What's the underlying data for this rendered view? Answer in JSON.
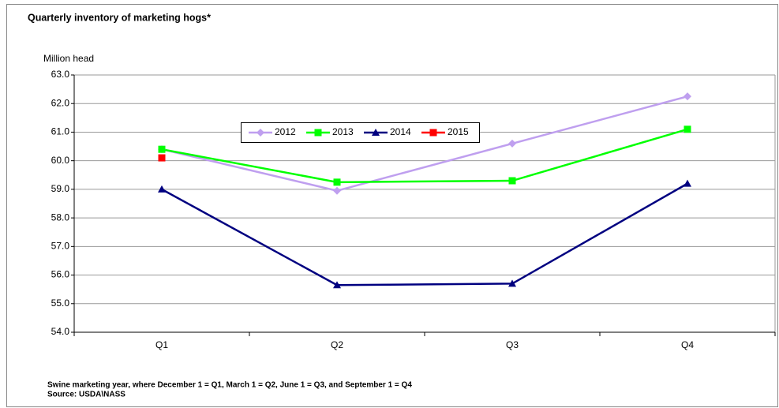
{
  "chart_data": {
    "type": "line",
    "title": "Quarterly inventory of marketing hogs*",
    "y_label": "Million head",
    "categories": [
      "Q1",
      "Q2",
      "Q3",
      "Q4"
    ],
    "series": [
      {
        "name": "2012",
        "color": "#bf9fef",
        "marker": "diamond",
        "values": [
          60.4,
          58.95,
          60.6,
          62.25
        ]
      },
      {
        "name": "2013",
        "color": "#00ff00",
        "marker": "square",
        "values": [
          60.4,
          59.25,
          59.3,
          61.1
        ]
      },
      {
        "name": "2014",
        "color": "#000080",
        "marker": "triangle",
        "values": [
          59.0,
          55.65,
          55.7,
          59.2
        ]
      },
      {
        "name": "2015",
        "color": "#ff0000",
        "marker": "square",
        "values": [
          60.1,
          null,
          null,
          null
        ]
      }
    ],
    "ylim": [
      54,
      63
    ],
    "yticks": [
      {
        "value": 54,
        "label": "54.0"
      },
      {
        "value": 55,
        "label": "55.0"
      },
      {
        "value": 56,
        "label": "56.0"
      },
      {
        "value": 57,
        "label": "57.0"
      },
      {
        "value": 58,
        "label": "58.0"
      },
      {
        "value": 59,
        "label": "59.0"
      },
      {
        "value": 60,
        "label": "60.0"
      },
      {
        "value": 61,
        "label": "61.0"
      },
      {
        "value": 62,
        "label": "62.0"
      },
      {
        "value": 63,
        "label": "63.0"
      }
    ],
    "grid": true,
    "legend": "top",
    "notes": [
      "Swine marketing year, where December 1 = Q1, March 1 = Q2, June 1 = Q3, and September 1 = Q4",
      "Source: USDA\\NASS"
    ]
  }
}
